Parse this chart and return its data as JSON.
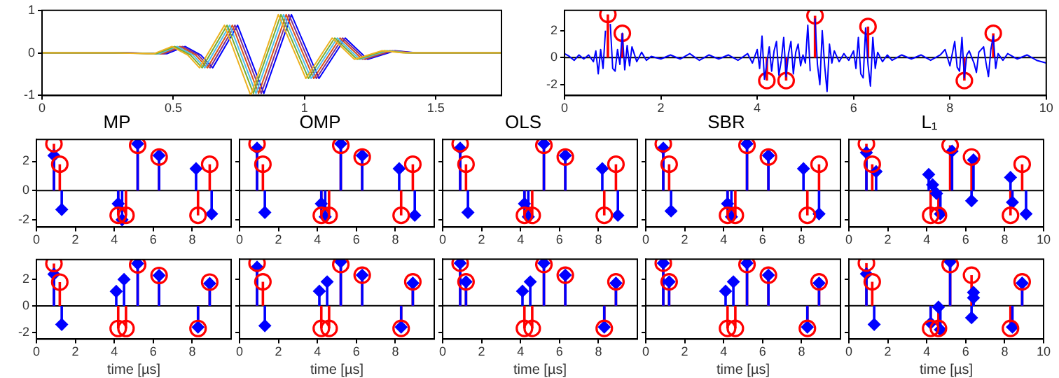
{
  "chart_data": [
    {
      "type": "line",
      "xlim": [
        0,
        1.75
      ],
      "xticks": [
        0,
        0.5,
        1,
        1.5
      ],
      "ylim": [
        -1,
        1
      ],
      "yticks": [
        -1,
        0,
        1
      ],
      "series": [
        {
          "color": "#edb120",
          "x": [
            0,
            0.275,
            0.425,
            0.495,
            0.555,
            0.6,
            0.695,
            0.795,
            0.9,
            1.005,
            1.105,
            1.19,
            1.295,
            1.375,
            1.75
          ],
          "values": [
            0,
            0,
            -0.02,
            0.15,
            -0.05,
            -0.35,
            0.65,
            -1,
            0.9,
            -0.6,
            0.35,
            -0.15,
            0.05,
            0,
            0
          ]
        },
        {
          "color": "#77ac30",
          "x": [
            0,
            0.285,
            0.435,
            0.505,
            0.565,
            0.61,
            0.705,
            0.805,
            0.91,
            1.015,
            1.115,
            1.2,
            1.305,
            1.385,
            1.75
          ],
          "values": [
            0,
            0,
            -0.02,
            0.15,
            -0.05,
            -0.35,
            0.65,
            -0.95,
            0.9,
            -0.6,
            0.35,
            -0.15,
            0.05,
            0,
            0
          ]
        },
        {
          "color": "#4dbeee",
          "x": [
            0,
            0.295,
            0.445,
            0.515,
            0.575,
            0.62,
            0.715,
            0.815,
            0.92,
            1.025,
            1.125,
            1.21,
            1.315,
            1.395,
            1.75
          ],
          "values": [
            0,
            0,
            -0.02,
            0.15,
            -0.05,
            -0.35,
            0.65,
            -0.95,
            0.9,
            -0.6,
            0.35,
            -0.15,
            0.05,
            0,
            0
          ]
        },
        {
          "color": "#d95319",
          "x": [
            0,
            0.305,
            0.455,
            0.525,
            0.585,
            0.63,
            0.725,
            0.825,
            0.93,
            1.035,
            1.135,
            1.22,
            1.325,
            1.405,
            1.75
          ],
          "values": [
            0,
            0,
            -0.02,
            0.15,
            -0.05,
            -0.35,
            0.65,
            -0.95,
            0.9,
            -0.6,
            0.35,
            -0.15,
            0.05,
            0,
            0
          ]
        },
        {
          "color": "#7e2f8e",
          "x": [
            0,
            0.315,
            0.465,
            0.535,
            0.595,
            0.64,
            0.735,
            0.835,
            0.94,
            1.045,
            1.145,
            1.23,
            1.335,
            1.415,
            1.75
          ],
          "values": [
            0,
            0,
            -0.02,
            0.15,
            -0.05,
            -0.35,
            0.65,
            -0.95,
            0.9,
            -0.6,
            0.35,
            -0.15,
            0.05,
            0,
            0
          ]
        },
        {
          "color": "#0000ff",
          "x": [
            0,
            0.325,
            0.475,
            0.545,
            0.605,
            0.65,
            0.745,
            0.845,
            0.95,
            1.055,
            1.155,
            1.24,
            1.345,
            1.425,
            1.75
          ],
          "values": [
            0,
            0,
            -0.02,
            0.15,
            -0.05,
            -0.35,
            0.65,
            -0.95,
            0.9,
            -0.6,
            0.35,
            -0.15,
            0.05,
            0,
            0
          ]
        }
      ]
    },
    {
      "type": "line",
      "xlim": [
        0,
        10
      ],
      "xticks": [
        0,
        2,
        4,
        6,
        8,
        10
      ],
      "ylim": [
        -2.8,
        3.5
      ],
      "yticks": [
        -2,
        0,
        2
      ],
      "ref_lines": [
        {
          "axis": "y",
          "value": 0,
          "color": "#000000"
        }
      ],
      "series": [
        {
          "color": "#0000ff",
          "x": [
            0,
            0.1,
            0.2,
            0.3,
            0.4,
            0.5,
            0.6,
            0.65,
            0.7,
            0.75,
            0.8,
            0.85,
            0.9,
            0.95,
            1.0,
            1.05,
            1.1,
            1.15,
            1.2,
            1.25,
            1.3,
            1.35,
            1.4,
            1.5,
            1.6,
            1.7,
            1.8,
            2.0,
            2.2,
            2.4,
            2.6,
            2.8,
            3.0,
            3.2,
            3.4,
            3.6,
            3.8,
            3.9,
            4.0,
            4.05,
            4.1,
            4.15,
            4.2,
            4.25,
            4.3,
            4.35,
            4.4,
            4.45,
            4.5,
            4.55,
            4.6,
            4.65,
            4.7,
            4.75,
            4.8,
            4.85,
            4.9,
            4.95,
            5.0,
            5.05,
            5.1,
            5.15,
            5.2,
            5.25,
            5.3,
            5.35,
            5.4,
            5.45,
            5.5,
            5.55,
            5.6,
            5.7,
            5.8,
            5.9,
            6.0,
            6.05,
            6.1,
            6.15,
            6.2,
            6.25,
            6.3,
            6.35,
            6.4,
            6.45,
            6.5,
            6.6,
            6.7,
            6.8,
            7.0,
            7.2,
            7.4,
            7.6,
            7.8,
            7.9,
            8.0,
            8.05,
            8.1,
            8.15,
            8.2,
            8.25,
            8.3,
            8.35,
            8.4,
            8.5,
            8.55,
            8.6,
            8.7,
            8.75,
            8.8,
            8.85,
            8.9,
            8.95,
            9.0,
            9.1,
            9.2,
            9.4,
            9.6,
            9.8,
            10
          ],
          "values": [
            0.3,
            0.1,
            -0.2,
            0.2,
            -0.1,
            0.2,
            -0.3,
            0.5,
            -1.2,
            0.6,
            -0.8,
            2.0,
            null,
            2.5,
            -0.8,
            -1.0,
            0.6,
            -0.5,
            1.8,
            -0.9,
            0.9,
            -0.6,
            0.8,
            -0.3,
            0.4,
            -0.2,
            0.1,
            -0.1,
            0.2,
            -0.1,
            0.3,
            -0.2,
            0.2,
            -0.1,
            0.2,
            -0.2,
            0.3,
            -0.4,
            0.6,
            -0.8,
            1.6,
            -1.6,
            -0.4,
            0.8,
            -1.0,
            0.5,
            1.2,
            -1.3,
            -0.2,
            1.5,
            -1.4,
            0.3,
            1.2,
            -1.2,
            0.4,
            1.0,
            -0.6,
            0.2,
            -0.4,
            2.4,
            -1.0,
            null,
            2.9,
            -0.5,
            -2.0,
            2.0,
            -0.6,
            -2.5,
            1.0,
            -0.4,
            0.5,
            -0.3,
            0.3,
            -0.2,
            0.5,
            -0.8,
            1.5,
            -1.2,
            -1.5,
            2.2,
            -0.5,
            -2.1,
            1.5,
            -0.8,
            0.4,
            -0.3,
            0.2,
            -0.2,
            0.2,
            -0.1,
            0.2,
            -0.2,
            0.2,
            0.6,
            -0.6,
            0.3,
            1.2,
            -0.7,
            -1.0,
            1.5,
            -1.5,
            0.2,
            0.5,
            -0.4,
            -1.1,
            0.4,
            0.8,
            -0.4,
            -1.4,
            0.6,
            1.6,
            -0.8,
            0.3,
            -0.2,
            0.3,
            -0.1,
            0.2,
            -0.2,
            -0.4
          ]
        },
        {
          "type": "lollipop",
          "color": "#ff0000",
          "marker": "circle",
          "x": [
            0.9,
            1.2,
            4.2,
            4.6,
            5.2,
            6.3,
            8.3,
            8.9
          ],
          "values": [
            3.2,
            1.8,
            -1.7,
            -1.7,
            3.1,
            2.3,
            -1.7,
            1.8
          ]
        }
      ]
    },
    {
      "type": "lollipop",
      "title": "MP",
      "xlim": [
        0,
        10
      ],
      "xticks": [
        0,
        2,
        4,
        6,
        8
      ],
      "ylim": [
        -2.5,
        3.5
      ],
      "yticks": [
        -2,
        0,
        2
      ],
      "ref_lines": [
        {
          "axis": "y",
          "value": 0,
          "color": "#000000"
        }
      ],
      "series": [
        {
          "color": "#ff0000",
          "marker": "circle",
          "x": [
            0.9,
            1.2,
            4.2,
            4.6,
            5.2,
            6.3,
            8.3,
            8.9
          ],
          "values": [
            3.2,
            1.8,
            -1.7,
            -1.7,
            3.1,
            2.3,
            -1.7,
            1.8
          ]
        },
        {
          "color": "#0000ff",
          "marker": "diamond",
          "x": [
            0.9,
            1.3,
            4.2,
            4.4,
            5.2,
            6.3,
            8.2,
            9.0
          ],
          "values": [
            2.4,
            -1.3,
            -0.9,
            -2.0,
            3.2,
            2.4,
            1.5,
            -1.6
          ]
        }
      ]
    },
    {
      "type": "lollipop",
      "title": "OMP",
      "xlim": [
        0,
        10
      ],
      "xticks": [
        0,
        2,
        4,
        6,
        8
      ],
      "ylim": [
        -2.5,
        3.5
      ],
      "yticks": [
        -2,
        0,
        2
      ],
      "tick_labels": "x",
      "ref_lines": [
        {
          "axis": "y",
          "value": 0,
          "color": "#000000"
        }
      ],
      "series": [
        {
          "color": "#ff0000",
          "marker": "circle",
          "x": [
            0.9,
            1.2,
            4.2,
            4.6,
            5.2,
            6.3,
            8.3,
            8.9
          ],
          "values": [
            3.2,
            1.8,
            -1.7,
            -1.7,
            3.1,
            2.3,
            -1.7,
            1.8
          ]
        },
        {
          "color": "#0000ff",
          "marker": "diamond",
          "x": [
            0.9,
            1.3,
            4.2,
            4.4,
            5.2,
            6.3,
            8.2,
            9.0
          ],
          "values": [
            2.9,
            -1.5,
            -0.9,
            -1.8,
            3.2,
            2.4,
            1.5,
            -1.7
          ]
        }
      ]
    },
    {
      "type": "lollipop",
      "title": "OLS",
      "xlim": [
        0,
        10
      ],
      "xticks": [
        0,
        2,
        4,
        6,
        8
      ],
      "ylim": [
        -2.5,
        3.5
      ],
      "yticks": [
        -2,
        0,
        2
      ],
      "tick_labels": "x",
      "ref_lines": [
        {
          "axis": "y",
          "value": 0,
          "color": "#000000"
        }
      ],
      "series": [
        {
          "color": "#ff0000",
          "marker": "circle",
          "x": [
            0.9,
            1.2,
            4.2,
            4.6,
            5.2,
            6.3,
            8.3,
            8.9
          ],
          "values": [
            3.2,
            1.8,
            -1.7,
            -1.7,
            3.1,
            2.3,
            -1.7,
            1.8
          ]
        },
        {
          "color": "#0000ff",
          "marker": "diamond",
          "x": [
            0.9,
            1.3,
            4.2,
            4.4,
            5.2,
            6.3,
            8.2,
            9.0
          ],
          "values": [
            2.9,
            -1.5,
            -0.9,
            -1.8,
            3.2,
            2.4,
            1.5,
            -1.7
          ]
        }
      ]
    },
    {
      "type": "lollipop",
      "title": "SBR",
      "xlim": [
        0,
        10
      ],
      "xticks": [
        0,
        2,
        4,
        6,
        8
      ],
      "ylim": [
        -2.5,
        3.5
      ],
      "yticks": [
        -2,
        0,
        2
      ],
      "tick_labels": "x",
      "ref_lines": [
        {
          "axis": "y",
          "value": 0,
          "color": "#000000"
        }
      ],
      "series": [
        {
          "color": "#ff0000",
          "marker": "circle",
          "x": [
            0.9,
            1.2,
            4.2,
            4.6,
            5.2,
            6.3,
            8.3,
            8.9
          ],
          "values": [
            3.2,
            1.8,
            -1.7,
            -1.7,
            3.1,
            2.3,
            -1.7,
            1.8
          ]
        },
        {
          "color": "#0000ff",
          "marker": "diamond",
          "x": [
            0.9,
            1.3,
            4.2,
            4.4,
            5.2,
            6.3,
            8.1,
            8.9
          ],
          "values": [
            2.9,
            -1.4,
            -0.9,
            -1.8,
            3.2,
            2.4,
            1.5,
            -1.6
          ]
        }
      ]
    },
    {
      "type": "lollipop",
      "title": "L₁",
      "xlim": [
        0,
        10
      ],
      "xticks": [
        0,
        2,
        4,
        6,
        8,
        10
      ],
      "ylim": [
        -2.5,
        3.5
      ],
      "yticks": [
        -2,
        0,
        2
      ],
      "tick_labels": "x",
      "ref_lines": [
        {
          "axis": "y",
          "value": 0,
          "color": "#000000"
        }
      ],
      "series": [
        {
          "color": "#ff0000",
          "marker": "circle",
          "x": [
            0.9,
            1.2,
            4.2,
            4.6,
            5.2,
            6.3,
            8.3,
            8.9
          ],
          "values": [
            3.2,
            1.8,
            -1.7,
            -1.7,
            3.1,
            2.3,
            -1.7,
            1.8
          ]
        },
        {
          "color": "#0000ff",
          "marker": "diamond",
          "x": [
            0.9,
            1.4,
            4.1,
            4.3,
            4.5,
            4.7,
            5.3,
            6.3,
            6.4,
            8.3,
            8.4,
            9.1
          ],
          "values": [
            2.6,
            1.3,
            1.1,
            0.4,
            -0.2,
            -1.6,
            2.7,
            -0.7,
            2.1,
            0.9,
            -0.8,
            -1.6
          ]
        }
      ]
    },
    {
      "type": "lollipop",
      "xlabel": "time [µs]",
      "xlim": [
        0,
        10
      ],
      "xticks": [
        0,
        2,
        4,
        6,
        8
      ],
      "ylim": [
        -2.5,
        3.5
      ],
      "yticks": [
        -2,
        0,
        2
      ],
      "ref_lines": [
        {
          "axis": "y",
          "value": 0,
          "color": "#000000"
        }
      ],
      "series": [
        {
          "color": "#ff0000",
          "marker": "circle",
          "x": [
            0.9,
            1.2,
            4.2,
            4.6,
            5.2,
            6.3,
            8.3,
            8.9
          ],
          "values": [
            3.2,
            1.8,
            -1.7,
            -1.7,
            3.1,
            2.3,
            -1.7,
            1.8
          ]
        },
        {
          "color": "#0000ff",
          "marker": "diamond",
          "x": [
            0.9,
            1.3,
            4.1,
            4.5,
            5.2,
            6.3,
            8.3,
            8.9
          ],
          "values": [
            2.4,
            -1.4,
            1.1,
            2.0,
            3.2,
            2.3,
            -1.6,
            1.7
          ]
        }
      ]
    },
    {
      "type": "lollipop",
      "xlabel": "time [µs]",
      "xlim": [
        0,
        10
      ],
      "xticks": [
        0,
        2,
        4,
        6,
        8
      ],
      "ylim": [
        -2.5,
        3.5
      ],
      "yticks": [
        -2,
        0,
        2
      ],
      "tick_labels": "x",
      "ref_lines": [
        {
          "axis": "y",
          "value": 0,
          "color": "#000000"
        }
      ],
      "series": [
        {
          "color": "#ff0000",
          "marker": "circle",
          "x": [
            0.9,
            1.2,
            4.2,
            4.6,
            5.2,
            6.3,
            8.3,
            8.9
          ],
          "values": [
            3.2,
            1.8,
            -1.7,
            -1.7,
            3.1,
            2.3,
            -1.7,
            1.8
          ]
        },
        {
          "color": "#0000ff",
          "marker": "diamond",
          "x": [
            0.9,
            1.3,
            4.1,
            4.5,
            5.2,
            6.3,
            8.3,
            8.9
          ],
          "values": [
            2.9,
            -1.5,
            1.1,
            1.8,
            3.3,
            2.3,
            -1.6,
            1.7
          ]
        }
      ]
    },
    {
      "type": "lollipop",
      "xlabel": "time [µs]",
      "xlim": [
        0,
        10
      ],
      "xticks": [
        0,
        2,
        4,
        6,
        8
      ],
      "ylim": [
        -2.5,
        3.5
      ],
      "yticks": [
        -2,
        0,
        2
      ],
      "tick_labels": "x",
      "ref_lines": [
        {
          "axis": "y",
          "value": 0,
          "color": "#000000"
        }
      ],
      "series": [
        {
          "color": "#ff0000",
          "marker": "circle",
          "x": [
            0.9,
            1.2,
            4.2,
            4.6,
            5.2,
            6.3,
            8.3,
            8.9
          ],
          "values": [
            3.2,
            1.8,
            -1.7,
            -1.7,
            3.1,
            2.3,
            -1.7,
            1.8
          ]
        },
        {
          "color": "#0000ff",
          "marker": "diamond",
          "x": [
            0.9,
            1.2,
            4.1,
            4.5,
            5.2,
            6.3,
            8.3,
            8.9
          ],
          "values": [
            3.2,
            1.8,
            1.1,
            1.8,
            3.2,
            2.3,
            -1.6,
            1.7
          ]
        }
      ]
    },
    {
      "type": "lollipop",
      "xlabel": "time [µs]",
      "xlim": [
        0,
        10
      ],
      "xticks": [
        0,
        2,
        4,
        6,
        8
      ],
      "ylim": [
        -2.5,
        3.5
      ],
      "yticks": [
        -2,
        0,
        2
      ],
      "tick_labels": "x",
      "ref_lines": [
        {
          "axis": "y",
          "value": 0,
          "color": "#000000"
        }
      ],
      "series": [
        {
          "color": "#ff0000",
          "marker": "circle",
          "x": [
            0.9,
            1.2,
            4.2,
            4.6,
            5.2,
            6.3,
            8.3,
            8.9
          ],
          "values": [
            3.2,
            1.8,
            -1.7,
            -1.7,
            3.1,
            2.3,
            -1.7,
            1.8
          ]
        },
        {
          "color": "#0000ff",
          "marker": "diamond",
          "x": [
            0.9,
            1.2,
            4.1,
            4.5,
            5.2,
            6.3,
            8.3,
            8.9
          ],
          "values": [
            3.2,
            1.8,
            1.1,
            1.8,
            3.2,
            2.3,
            -1.6,
            1.7
          ]
        }
      ]
    },
    {
      "type": "lollipop",
      "xlabel": "time [µs]",
      "xlim": [
        0,
        10
      ],
      "xticks": [
        0,
        2,
        4,
        6,
        8,
        10
      ],
      "ylim": [
        -2.5,
        3.5
      ],
      "yticks": [
        -2,
        0,
        2
      ],
      "tick_labels": "x",
      "ref_lines": [
        {
          "axis": "y",
          "value": 0,
          "color": "#000000"
        }
      ],
      "series": [
        {
          "color": "#ff0000",
          "marker": "circle",
          "x": [
            0.9,
            1.2,
            4.2,
            4.6,
            5.2,
            6.3,
            8.3,
            8.9
          ],
          "values": [
            3.2,
            1.8,
            -1.7,
            -1.7,
            3.1,
            2.3,
            -1.7,
            1.8
          ]
        },
        {
          "color": "#0000ff",
          "marker": "diamond",
          "x": [
            0.9,
            1.3,
            4.2,
            4.6,
            4.7,
            5.2,
            6.3,
            6.4,
            6.4,
            8.4,
            8.9
          ],
          "values": [
            2.4,
            -1.4,
            -1.3,
            -0.1,
            -1.8,
            3.3,
            -0.9,
            0.6,
            1.0,
            -1.6,
            1.7
          ]
        }
      ]
    }
  ]
}
